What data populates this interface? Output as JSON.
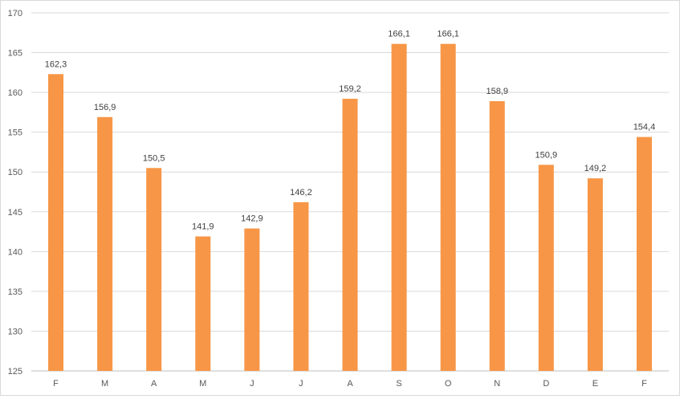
{
  "chart_data": {
    "type": "bar",
    "categories": [
      "F",
      "M",
      "A",
      "M",
      "J",
      "J",
      "A",
      "S",
      "O",
      "N",
      "D",
      "E",
      "F"
    ],
    "series": [
      {
        "values": [
          162.3,
          156.9,
          150.5,
          141.9,
          142.9,
          146.2,
          159.2,
          166.1,
          166.1,
          158.9,
          150.9,
          149.2,
          154.4
        ],
        "labels": [
          "162,3",
          "156,9",
          "150,5",
          "141,9",
          "142,9",
          "146,2",
          "159,2",
          "166,1",
          "166,1",
          "158,9",
          "150,9",
          "149,2",
          "154,4"
        ]
      }
    ],
    "ylim": [
      125,
      170
    ],
    "yticks": [
      125,
      130,
      135,
      140,
      145,
      150,
      155,
      160,
      165,
      170
    ],
    "ytick_labels": [
      "125",
      "130",
      "135",
      "140",
      "145",
      "150",
      "155",
      "160",
      "165",
      "170"
    ],
    "grid": true,
    "legend": "none",
    "colors": {
      "bar": "#f79646",
      "grid": "#d9d9d9",
      "text": "#595959"
    }
  }
}
